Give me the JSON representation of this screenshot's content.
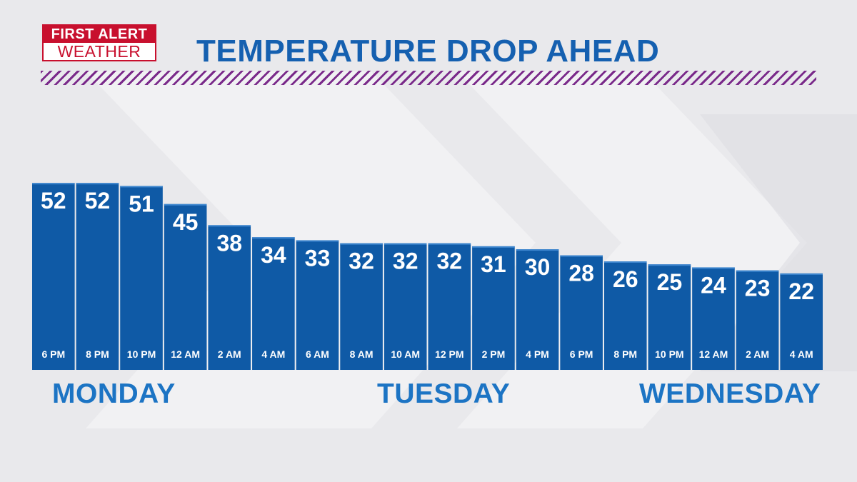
{
  "logo": {
    "line1": "FIRST ALERT",
    "line2": "WEATHER"
  },
  "colors": {
    "bar": "#0f5aa6",
    "bar_text": "#ffffff",
    "title": "#1560b0",
    "day_label": "#1c74c4",
    "stripe": "#7a2a8a",
    "logo_red": "#c8102e"
  },
  "chart_data": {
    "type": "bar",
    "title": "TEMPERATURE DROP AHEAD",
    "categories": [
      "6 PM",
      "8 PM",
      "10 PM",
      "12 AM",
      "2 AM",
      "4 AM",
      "6 AM",
      "8 AM",
      "10 AM",
      "12 PM",
      "2 PM",
      "4 PM",
      "6 PM",
      "8 PM",
      "10 PM",
      "12 AM",
      "2 AM",
      "4 AM"
    ],
    "values": [
      52,
      52,
      51,
      45,
      38,
      34,
      33,
      32,
      32,
      32,
      31,
      30,
      28,
      26,
      25,
      24,
      23,
      22
    ],
    "data_labels": true,
    "group_labels": [
      "MONDAY",
      "TUESDAY",
      "WEDNESDAY"
    ],
    "ylim": [
      -10,
      53
    ],
    "grid": false,
    "legend": "none"
  }
}
